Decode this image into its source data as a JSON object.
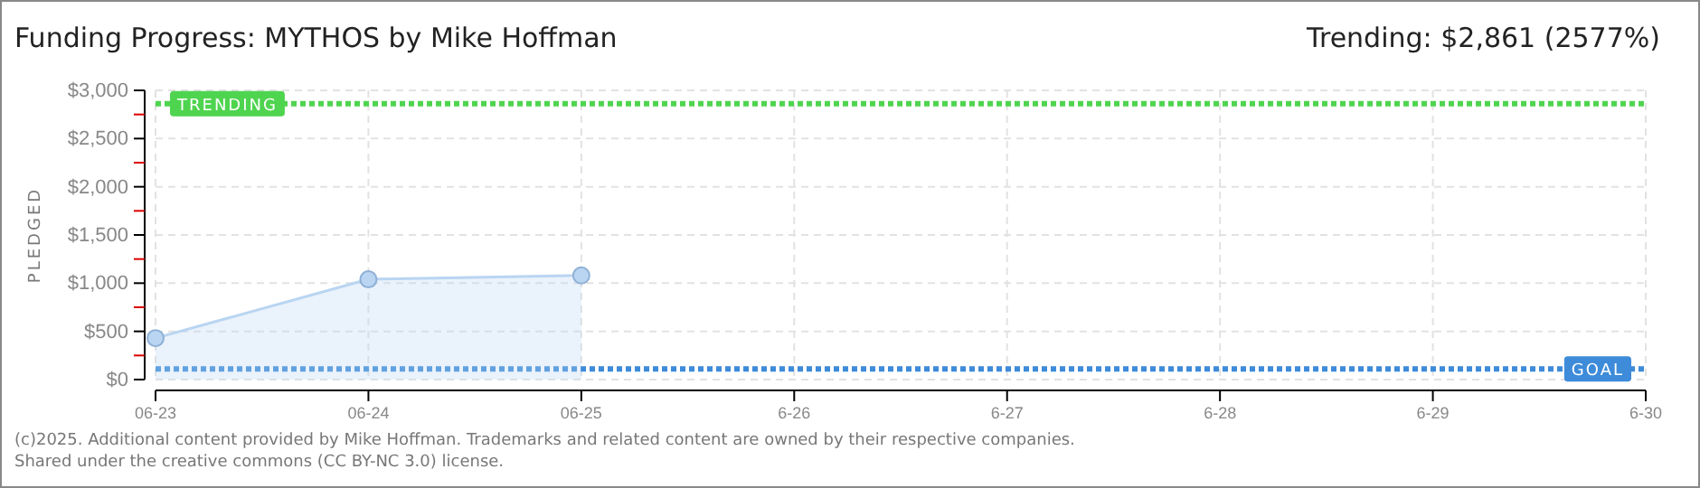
{
  "chart_data": {
    "type": "area",
    "title": "Funding Progress: MYTHOS by Mike Hoffman",
    "subtitle": "Trending: $2,861 (2577%)",
    "ylabel": "PLEDGED",
    "categories": [
      "06-23",
      "06-24",
      "06-25",
      "6-26",
      "6-27",
      "6-28",
      "6-29",
      "6-30"
    ],
    "series": [
      {
        "color": "#b9d5f2",
        "values": [
          430,
          1040,
          1080,
          null,
          null,
          null,
          null,
          null
        ]
      }
    ],
    "ylim": [
      0,
      3000
    ],
    "yticks": [
      {
        "value": 0,
        "label": "$0"
      },
      {
        "value": 250,
        "label": null
      },
      {
        "value": 500,
        "label": "$500"
      },
      {
        "value": 750,
        "label": null
      },
      {
        "value": 1000,
        "label": "$1,000"
      },
      {
        "value": 1250,
        "label": null
      },
      {
        "value": 1500,
        "label": "$1,500"
      },
      {
        "value": 1750,
        "label": null
      },
      {
        "value": 2000,
        "label": "$2,000"
      },
      {
        "value": 2250,
        "label": null
      },
      {
        "value": 2500,
        "label": "$2,500"
      },
      {
        "value": 2750,
        "label": null
      },
      {
        "value": 3000,
        "label": "$3,000"
      }
    ],
    "grid": true,
    "marker": "circle",
    "ref_lines": [
      {
        "axis": "y",
        "value": 2861,
        "label": "TRENDING",
        "color": "#4fd44f",
        "line_style": "dotted"
      },
      {
        "axis": "y",
        "value": 111,
        "label": "GOAL",
        "color": "#3d8bd9",
        "line_style": "dotted"
      }
    ],
    "annotations": [
      "(c)2025. Additional content provided by Mike Hoffman. Trademarks and related content are owned by their respective companies.",
      "Shared under the creative commons (CC BY-NC 3.0) license."
    ]
  }
}
